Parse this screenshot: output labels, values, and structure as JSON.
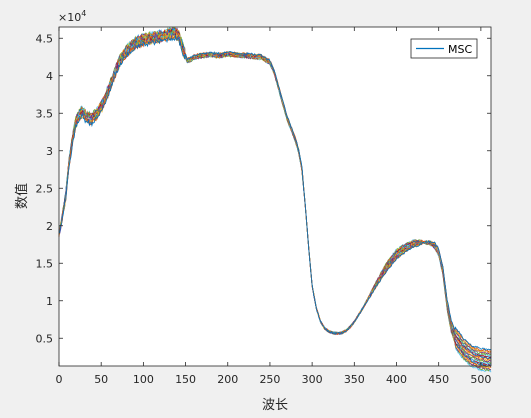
{
  "chart_data": {
    "type": "line",
    "title": "",
    "xlabel": "波长",
    "ylabel": "数值",
    "y_multiplier_label": "×10",
    "y_multiplier_exponent": "4",
    "xlim": [
      0,
      512
    ],
    "ylim": [
      1300,
      46500
    ],
    "x_ticks": [
      0,
      50,
      100,
      150,
      200,
      250,
      300,
      350,
      400,
      450,
      500
    ],
    "x_tick_labels": [
      "0",
      "50",
      "100",
      "150",
      "200",
      "250",
      "300",
      "350",
      "400",
      "450",
      "500"
    ],
    "y_ticks": [
      5000,
      10000,
      15000,
      20000,
      25000,
      30000,
      35000,
      40000,
      45000
    ],
    "y_tick_labels": [
      "0.5",
      "1",
      "1.5",
      "2",
      "2.5",
      "3",
      "3.5",
      "4",
      "4.5"
    ],
    "grid": false,
    "legend": {
      "position": "top-right",
      "entries": [
        "MSC"
      ]
    },
    "series_count": 20,
    "series_colors": [
      "#0072bd",
      "#d95319",
      "#edb120",
      "#7e2f8e",
      "#77ac30",
      "#4dbeee",
      "#a2142f"
    ],
    "base_curve": {
      "x": [
        0,
        3,
        8,
        12,
        16,
        20,
        24,
        28,
        32,
        38,
        44,
        50,
        55,
        60,
        65,
        70,
        75,
        80,
        85,
        90,
        100,
        110,
        120,
        130,
        138,
        142,
        148,
        152,
        156,
        160,
        170,
        180,
        190,
        200,
        210,
        220,
        230,
        240,
        250,
        255,
        260,
        265,
        270,
        275,
        280,
        284,
        288,
        292,
        296,
        300,
        305,
        310,
        315,
        320,
        325,
        330,
        335,
        340,
        345,
        350,
        360,
        370,
        380,
        390,
        400,
        410,
        420,
        430,
        440,
        445,
        450,
        455,
        460,
        465,
        470,
        480,
        490,
        500,
        512
      ],
      "y": [
        19000,
        20500,
        24000,
        28500,
        31500,
        33800,
        34800,
        35200,
        34500,
        34200,
        34800,
        35800,
        37000,
        38500,
        40000,
        41500,
        42500,
        43200,
        43800,
        44300,
        44800,
        45000,
        45200,
        45500,
        45700,
        45300,
        43200,
        42000,
        42200,
        42500,
        42700,
        42800,
        42700,
        42900,
        42800,
        42700,
        42600,
        42500,
        41800,
        40500,
        38500,
        36500,
        34500,
        33000,
        31500,
        30000,
        27500,
        22500,
        17000,
        12000,
        9000,
        7200,
        6300,
        5900,
        5700,
        5650,
        5700,
        6000,
        6500,
        7200,
        9000,
        11000,
        13000,
        14800,
        16200,
        17000,
        17600,
        17800,
        17700,
        17400,
        16500,
        14000,
        9500,
        6500,
        5000,
        3500,
        2600,
        2200,
        2000
      ]
    }
  }
}
